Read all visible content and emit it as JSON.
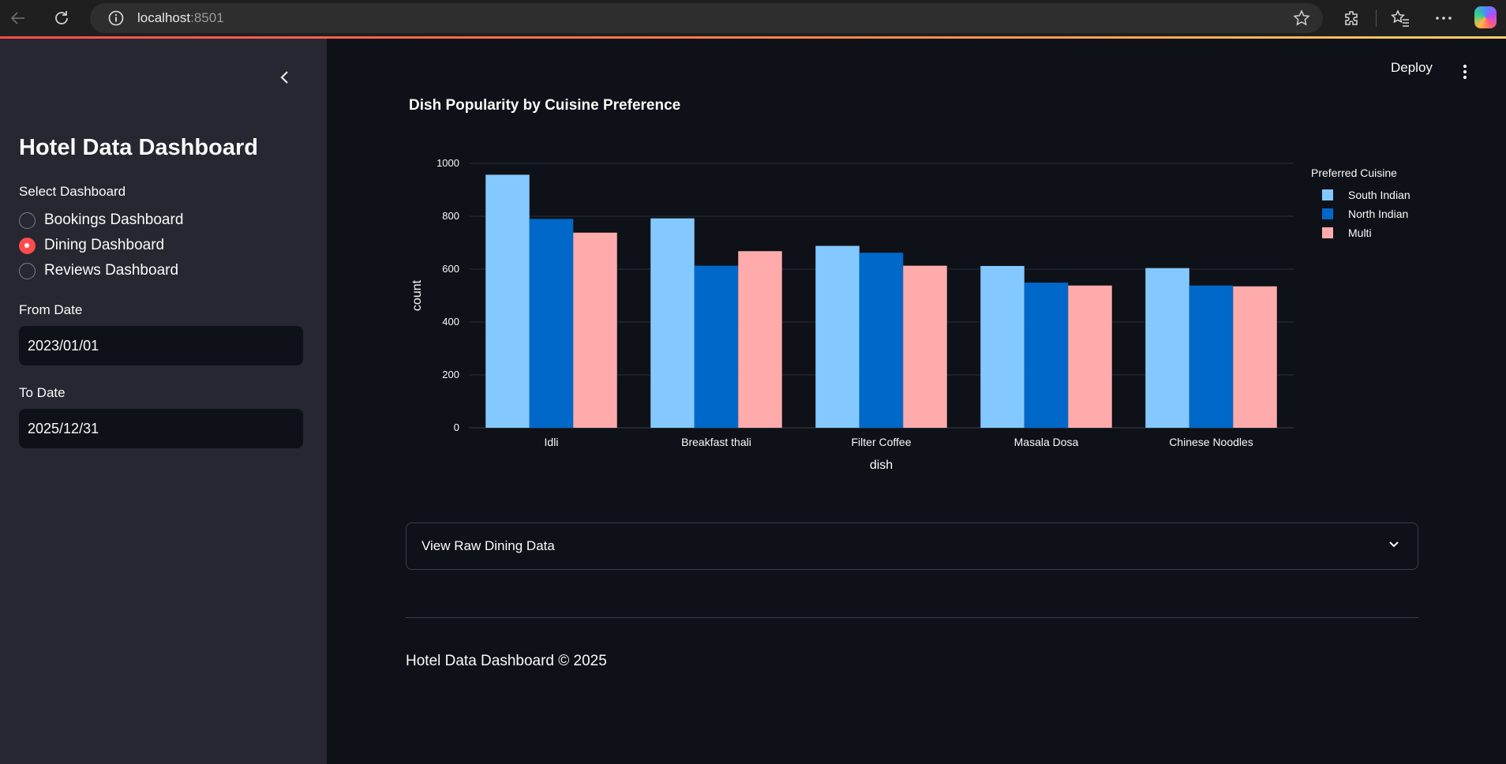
{
  "browser": {
    "url_host": "localhost",
    "url_port": ":8501"
  },
  "sidebar": {
    "title": "Hotel Data Dashboard",
    "select_label": "Select Dashboard",
    "options": [
      {
        "label": "Bookings Dashboard",
        "checked": false
      },
      {
        "label": "Dining Dashboard",
        "checked": true
      },
      {
        "label": "Reviews Dashboard",
        "checked": false
      }
    ],
    "from_label": "From Date",
    "from_value": "2023/01/01",
    "to_label": "To Date",
    "to_value": "2025/12/31"
  },
  "header": {
    "deploy_label": "Deploy"
  },
  "main": {
    "chart_title": "Dish Popularity by Cuisine Preference",
    "expander_label": "View Raw Dining Data",
    "footer": "Hotel Data Dashboard © 2025"
  },
  "colors": {
    "accent": "#ff4b4b",
    "sidebar_bg": "#262730",
    "main_bg": "#0e1117"
  },
  "chart_data": {
    "type": "bar",
    "title": "Dish Popularity by Cuisine Preference",
    "xlabel": "dish",
    "ylabel": "count",
    "ylim": [
      0,
      1000
    ],
    "yticks": [
      0,
      200,
      400,
      600,
      800,
      1000
    ],
    "grid": true,
    "legend_title": "Preferred Cuisine",
    "legend_position": "right",
    "categories": [
      "Idli",
      "Breakfast thali",
      "Filter Coffee",
      "Masala Dosa",
      "Chinese Noodles"
    ],
    "series": [
      {
        "name": "South Indian",
        "color": "#83c9ff",
        "values": [
          957,
          792,
          688,
          612,
          604
        ]
      },
      {
        "name": "North Indian",
        "color": "#0068c9",
        "values": [
          790,
          613,
          662,
          549,
          538
        ]
      },
      {
        "name": "Multi",
        "color": "#ffabab",
        "values": [
          738,
          668,
          613,
          538,
          535
        ]
      }
    ]
  }
}
